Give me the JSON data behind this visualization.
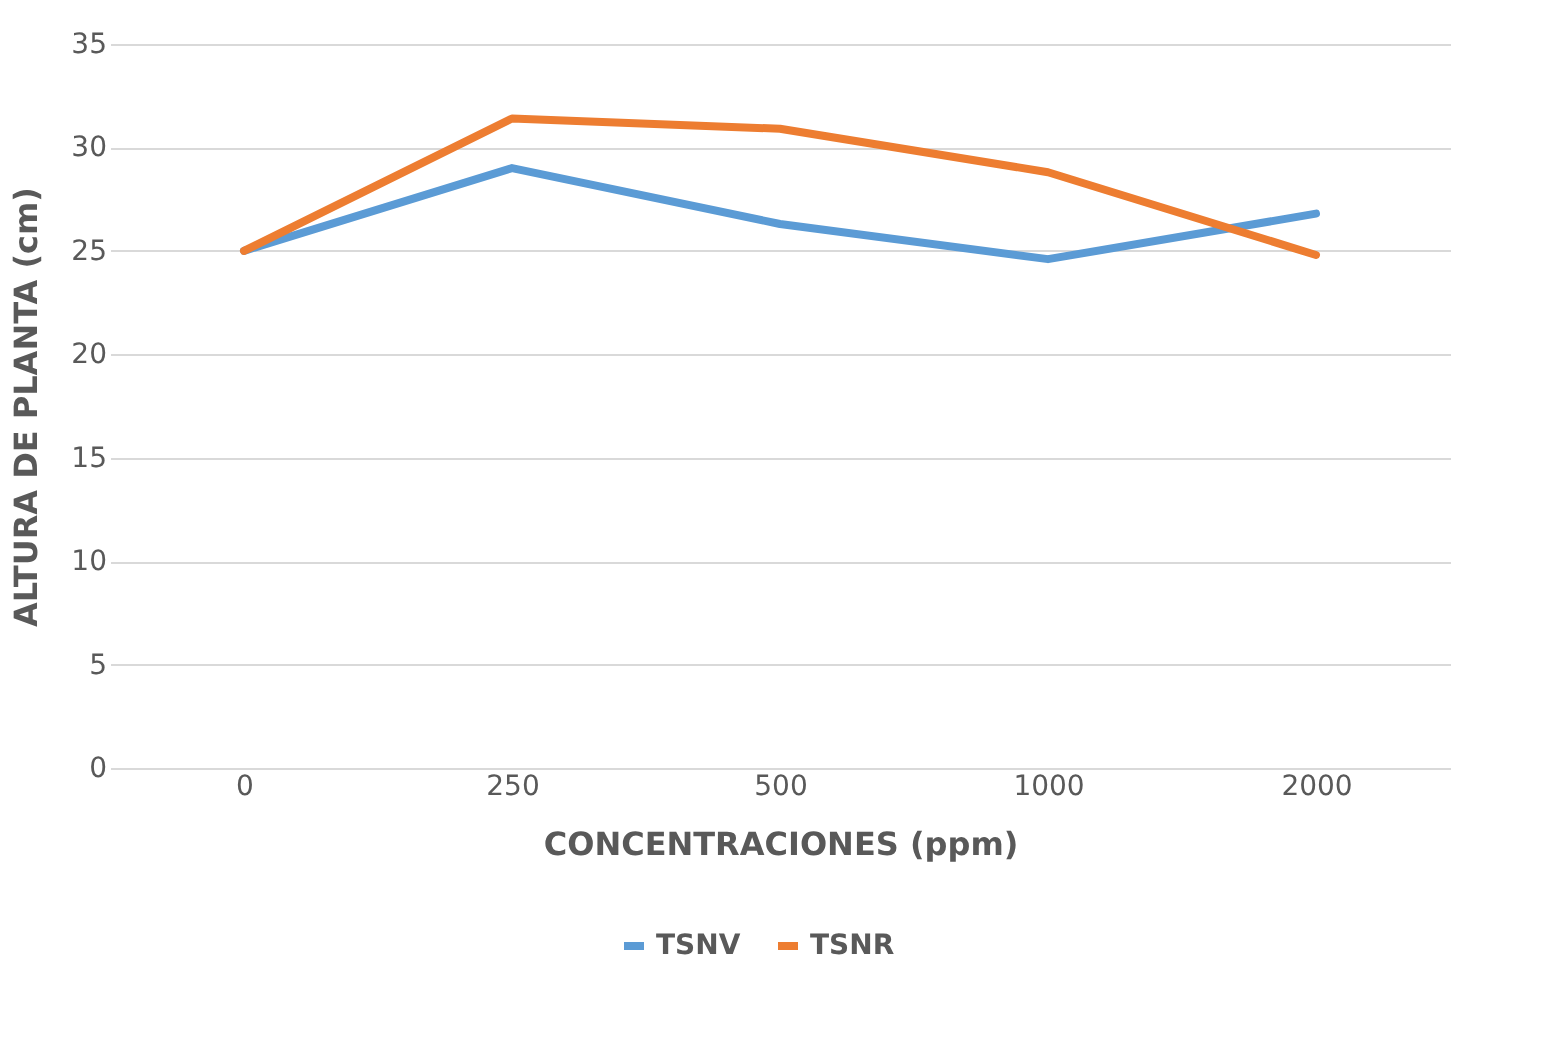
{
  "chart_data": {
    "type": "line",
    "xlabel": "CONCENTRACIONES  (ppm)",
    "ylabel": "ALTURA  DE PLANTA (cm)",
    "categories": [
      "0",
      "250",
      "500",
      "1000",
      "2000"
    ],
    "series": [
      {
        "name": "TSNV",
        "color": "#5b9bd5",
        "values": [
          25,
          29,
          26.3,
          24.6,
          26.8
        ]
      },
      {
        "name": "TSNR",
        "color": "#ed7d31",
        "values": [
          25,
          31.4,
          30.9,
          28.8,
          24.8
        ]
      }
    ],
    "ylim": [
      0,
      35
    ],
    "yticks": [
      0,
      5,
      10,
      15,
      20,
      25,
      30,
      35
    ],
    "grid": "y",
    "legend": "bottom",
    "marker": "none",
    "line_style": "solid"
  }
}
